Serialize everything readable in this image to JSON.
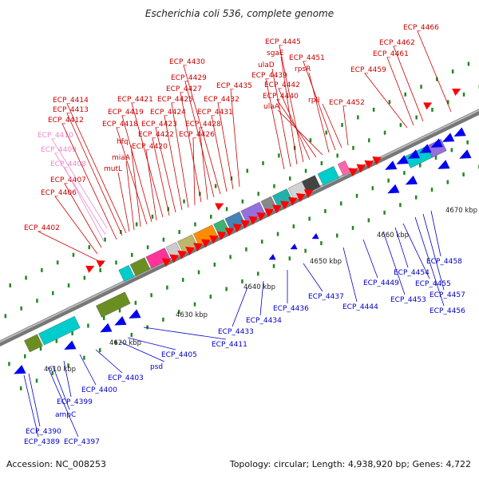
{
  "title": "Escherichia coli 536, complete genome",
  "footer": {
    "accession": "Accession: NC_008253",
    "summary": "Topology: circular; Length: 4,938,920 bp; Genes: 4,722"
  },
  "colors": {
    "forward_label": "#cc0000",
    "reverse_label": "#0000cc",
    "pink_label": "#ee88cc",
    "forward_gene": "#ff0000",
    "reverse_gene": "#0000ee",
    "scale_tick": "#228822",
    "axis": "#888888"
  },
  "scale_labels": [
    "4610 kbp",
    "4620 kbp",
    "4630 kbp",
    "4640 kbp",
    "4650 kbp",
    "4660 kbp",
    "4670 kbp"
  ],
  "forward_labels": [
    "ECP_4402",
    "ECP_4406",
    "ECP_4407",
    "ECP_4408",
    "ECP_4409",
    "ECP_4410",
    "ECP_4412",
    "ECP_4413",
    "ECP_4414",
    "mutL",
    "miaA",
    "hfq",
    "ECP_4418",
    "ECP_4419",
    "ECP_4420",
    "ECP_4421",
    "ECP_4422",
    "ECP_4423",
    "ECP_4424",
    "ECP_4425",
    "ECP_4426",
    "ECP_4427",
    "ECP_4428",
    "ECP_4429",
    "ECP_4430",
    "ECP_4431",
    "ECP_4432",
    "ECP_4435",
    "ECP_4439",
    "ulaD",
    "sgaE",
    "ECP_4445",
    "ECP_4442",
    "ECP_4440",
    "ulaA",
    "rpsR",
    "ECP_4451",
    "rplI",
    "ECP_4452",
    "ECP_4459",
    "ECP_4461",
    "ECP_4462",
    "ECP_4466"
  ],
  "reverse_labels": [
    "ECP_4389",
    "ECP_4390",
    "ECP_4397",
    "ampC",
    "ECP_4399",
    "ECP_4400",
    "ECP_4403",
    "psd",
    "ECP_4405",
    "ECP_4411",
    "ECP_4433",
    "ECP_4434",
    "ECP_4436",
    "ECP_4437",
    "ECP_4444",
    "ECP_4449",
    "ECP_4453",
    "ECP_4454",
    "ECP_4455",
    "ECP_4456",
    "ECP_4457",
    "ECP_4458"
  ]
}
